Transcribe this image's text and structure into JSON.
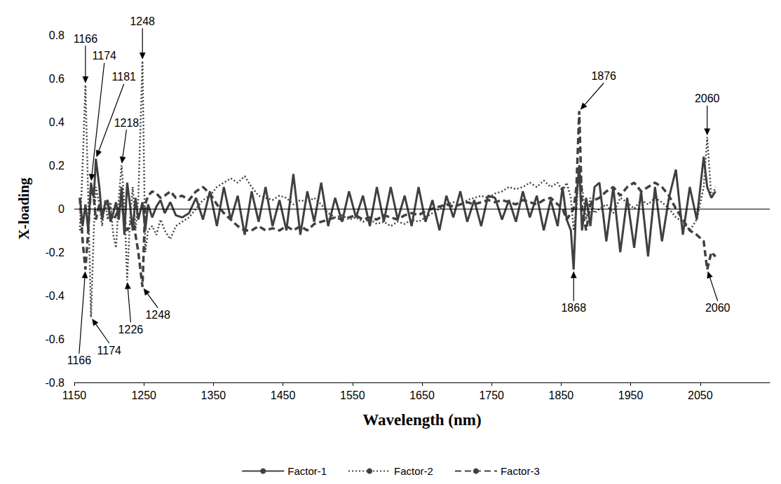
{
  "chart_data": {
    "type": "line",
    "x_label": "Wavelength (nm)",
    "y_label": "X-loading",
    "xlim": [
      1150,
      2150
    ],
    "xticks": [
      1150,
      1250,
      1350,
      1450,
      1550,
      1650,
      1750,
      1850,
      1950,
      2050
    ],
    "ylim": [
      -0.8,
      0.8
    ],
    "yticks": [
      -0.8,
      -0.6,
      -0.4,
      -0.2,
      0,
      0.2,
      0.4,
      0.6,
      0.8
    ],
    "grid": false,
    "legend": "bottom",
    "x": [
      1158,
      1162,
      1166,
      1170,
      1174,
      1178,
      1181,
      1186,
      1190,
      1194,
      1198,
      1202,
      1206,
      1210,
      1214,
      1218,
      1222,
      1226,
      1230,
      1234,
      1238,
      1242,
      1248,
      1252,
      1256,
      1262,
      1268,
      1274,
      1280,
      1288,
      1296,
      1305,
      1315,
      1325,
      1335,
      1345,
      1355,
      1365,
      1375,
      1385,
      1395,
      1405,
      1415,
      1425,
      1435,
      1445,
      1455,
      1465,
      1475,
      1485,
      1495,
      1505,
      1515,
      1525,
      1535,
      1545,
      1555,
      1565,
      1575,
      1585,
      1595,
      1605,
      1615,
      1625,
      1635,
      1645,
      1655,
      1665,
      1675,
      1685,
      1695,
      1705,
      1715,
      1725,
      1735,
      1745,
      1755,
      1765,
      1775,
      1785,
      1795,
      1805,
      1815,
      1825,
      1835,
      1845,
      1852,
      1858,
      1864,
      1868,
      1872,
      1876,
      1880,
      1886,
      1892,
      1898,
      1905,
      1915,
      1925,
      1935,
      1945,
      1955,
      1965,
      1975,
      1985,
      1995,
      2005,
      2015,
      2025,
      2035,
      2045,
      2055,
      2060,
      2066,
      2072
    ],
    "series": [
      {
        "name": "Factor-1",
        "color": "#404040",
        "line_style": "solid",
        "values": [
          0.05,
          -0.08,
          0.02,
          -0.1,
          0.12,
          0.05,
          0.23,
          0.1,
          -0.05,
          0.02,
          0.04,
          -0.06,
          -0.02,
          0.03,
          -0.05,
          0.1,
          -0.12,
          0.12,
          0.02,
          -0.1,
          0.05,
          -0.05,
          0.03,
          -0.1,
          0.02,
          -0.04,
          0.01,
          0.04,
          -0.02,
          0.03,
          -0.03,
          -0.04,
          -0.02,
          0.05,
          -0.05,
          0.08,
          -0.08,
          0.1,
          -0.05,
          0.06,
          -0.12,
          0.08,
          -0.06,
          0.1,
          -0.08,
          0.04,
          -0.1,
          0.16,
          -0.12,
          0.08,
          -0.06,
          0.12,
          -0.08,
          0.05,
          -0.06,
          0.08,
          -0.04,
          0.06,
          -0.08,
          0.1,
          -0.06,
          0.1,
          -0.05,
          0.06,
          -0.08,
          0.1,
          -0.06,
          0.04,
          -0.1,
          0.06,
          -0.04,
          0.08,
          -0.06,
          0.04,
          -0.08,
          0.06,
          0.05,
          -0.05,
          0.04,
          -0.06,
          0.08,
          -0.04,
          0.06,
          -0.1,
          0.04,
          -0.08,
          0.1,
          -0.05,
          -0.1,
          -0.28,
          0.05,
          0.2,
          -0.1,
          0.05,
          -0.08,
          0.1,
          0.12,
          -0.15,
          0.1,
          -0.2,
          0.05,
          -0.18,
          0.08,
          -0.22,
          0.1,
          -0.15,
          0.05,
          0.18,
          -0.12,
          0.1,
          -0.05,
          0.24,
          0.1,
          0.05,
          0.08
        ]
      },
      {
        "name": "Factor-2",
        "color": "#404040",
        "line_style": "dotted",
        "values": [
          -0.1,
          0.2,
          0.57,
          0.05,
          -0.5,
          -0.1,
          0.1,
          0.02,
          -0.08,
          0.04,
          -0.05,
          0.03,
          -0.12,
          -0.18,
          0.05,
          0.2,
          0.02,
          -0.33,
          -0.05,
          0.1,
          -0.1,
          0.05,
          0.68,
          -0.2,
          -0.1,
          -0.08,
          -0.12,
          -0.05,
          -0.1,
          -0.14,
          -0.08,
          -0.06,
          -0.04,
          0.0,
          0.04,
          0.06,
          0.1,
          0.12,
          0.14,
          0.12,
          0.15,
          0.1,
          0.06,
          0.05,
          0.04,
          0.06,
          0.05,
          0.02,
          0.04,
          0.03,
          0.05,
          0.02,
          -0.02,
          -0.04,
          -0.03,
          -0.05,
          -0.04,
          -0.06,
          -0.05,
          -0.07,
          -0.06,
          -0.08,
          -0.06,
          -0.07,
          -0.05,
          -0.06,
          -0.04,
          -0.02,
          0.0,
          0.02,
          0.03,
          0.02,
          0.04,
          0.05,
          0.06,
          0.05,
          0.07,
          0.08,
          0.1,
          0.09,
          0.1,
          0.12,
          0.1,
          0.13,
          0.1,
          0.12,
          0.08,
          0.12,
          0.05,
          -0.1,
          0.0,
          0.2,
          0.1,
          -0.05,
          0.05,
          -0.02,
          0.0,
          0.02,
          -0.02,
          0.05,
          0.03,
          0.0,
          0.04,
          0.02,
          0.05,
          0.03,
          0.0,
          -0.04,
          -0.06,
          -0.1,
          -0.05,
          0.1,
          0.33,
          0.05,
          0.1
        ]
      },
      {
        "name": "Factor-3",
        "color": "#404040",
        "line_style": "dashed",
        "values": [
          0.05,
          -0.15,
          -0.28,
          -0.1,
          0.1,
          0.05,
          -0.05,
          0.02,
          -0.03,
          0.01,
          0.02,
          -0.02,
          -0.05,
          -0.03,
          0.0,
          0.02,
          -0.05,
          -0.1,
          -0.08,
          -0.05,
          -0.12,
          -0.2,
          -0.36,
          0.02,
          0.06,
          0.08,
          0.07,
          0.05,
          0.06,
          0.08,
          0.05,
          0.06,
          0.04,
          0.08,
          0.1,
          0.07,
          0.02,
          -0.02,
          -0.05,
          -0.08,
          -0.1,
          -0.1,
          -0.08,
          -0.1,
          -0.09,
          -0.1,
          -0.08,
          -0.1,
          -0.08,
          -0.1,
          -0.07,
          -0.06,
          -0.05,
          -0.04,
          -0.05,
          -0.04,
          -0.03,
          -0.05,
          -0.04,
          -0.05,
          -0.03,
          -0.04,
          -0.05,
          -0.03,
          -0.02,
          -0.03,
          -0.01,
          0.0,
          0.01,
          0.02,
          0.01,
          0.02,
          0.03,
          0.02,
          0.03,
          0.04,
          0.03,
          0.04,
          0.03,
          0.02,
          0.04,
          0.03,
          0.02,
          0.04,
          0.05,
          0.02,
          0.0,
          -0.05,
          -0.02,
          0.0,
          0.1,
          0.45,
          0.0,
          -0.1,
          0.02,
          0.04,
          0.05,
          0.08,
          0.1,
          0.06,
          0.1,
          0.12,
          0.08,
          0.1,
          0.12,
          0.1,
          0.06,
          0.0,
          -0.05,
          -0.1,
          -0.12,
          -0.15,
          -0.28,
          -0.2,
          -0.22
        ]
      }
    ],
    "annotations": [
      {
        "text": "1248",
        "x": 1248,
        "y": 0.68
      },
      {
        "text": "1166",
        "x": 1166,
        "y": 0.57
      },
      {
        "text": "1174",
        "x": 1174,
        "y": 0.12
      },
      {
        "text": "1181",
        "x": 1181,
        "y": 0.23
      },
      {
        "text": "1218",
        "x": 1218,
        "y": 0.2
      },
      {
        "text": "1166",
        "x": 1166,
        "y": -0.28
      },
      {
        "text": "1174",
        "x": 1174,
        "y": -0.5
      },
      {
        "text": "1226",
        "x": 1226,
        "y": -0.33
      },
      {
        "text": "1248",
        "x": 1248,
        "y": -0.36
      },
      {
        "text": "1876",
        "x": 1876,
        "y": 0.45
      },
      {
        "text": "1868",
        "x": 1868,
        "y": -0.28
      },
      {
        "text": "2060",
        "x": 2060,
        "y": 0.33
      },
      {
        "text": "2060",
        "x": 2060,
        "y": -0.28
      }
    ]
  }
}
